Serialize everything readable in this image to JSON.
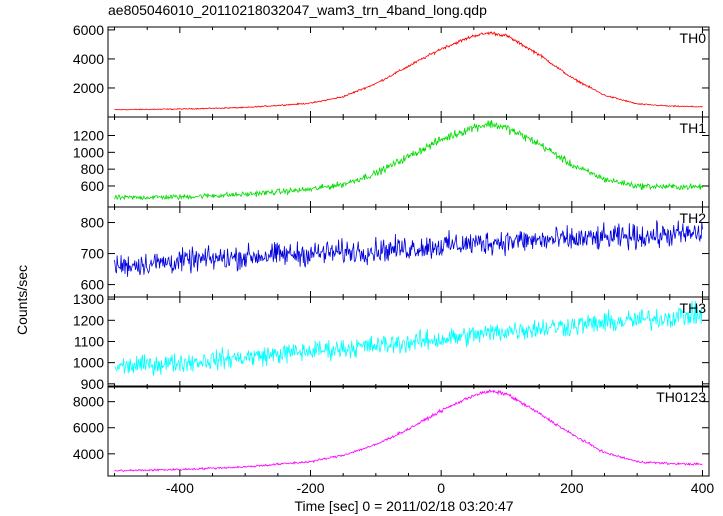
{
  "chart_data": {
    "type": "line",
    "title": "ae805046010_20110218032047_wam3_trn_4band_long.qdp",
    "xlabel": "Time [sec] 0 = 2011/02/18 03:20:47",
    "ylabel": "Counts/sec",
    "xlim": [
      -510,
      410
    ],
    "xticks": [
      -400,
      -200,
      0,
      200,
      400
    ],
    "panels": [
      {
        "name": "TH0",
        "color": "#ff0000",
        "ylim": [
          0,
          6200
        ],
        "yticks": [
          2000,
          4000,
          6000
        ],
        "points": [
          [
            -500,
            500
          ],
          [
            -400,
            550
          ],
          [
            -300,
            650
          ],
          [
            -200,
            950
          ],
          [
            -150,
            1400
          ],
          [
            -100,
            2300
          ],
          [
            -50,
            3500
          ],
          [
            0,
            4700
          ],
          [
            50,
            5600
          ],
          [
            75,
            5800
          ],
          [
            100,
            5600
          ],
          [
            150,
            4300
          ],
          [
            200,
            2700
          ],
          [
            250,
            1500
          ],
          [
            300,
            900
          ],
          [
            350,
            750
          ],
          [
            400,
            700
          ]
        ]
      },
      {
        "name": "TH1",
        "color": "#00dd00",
        "ylim": [
          350,
          1420
        ],
        "yticks": [
          600,
          800,
          1000,
          1200
        ],
        "points": [
          [
            -500,
            460
          ],
          [
            -400,
            470
          ],
          [
            -300,
            500
          ],
          [
            -200,
            560
          ],
          [
            -150,
            620
          ],
          [
            -100,
            750
          ],
          [
            -50,
            950
          ],
          [
            0,
            1150
          ],
          [
            50,
            1300
          ],
          [
            75,
            1340
          ],
          [
            100,
            1290
          ],
          [
            150,
            1100
          ],
          [
            200,
            850
          ],
          [
            250,
            680
          ],
          [
            300,
            600
          ],
          [
            350,
            590
          ],
          [
            400,
            590
          ]
        ]
      },
      {
        "name": "TH2",
        "color": "#0000dd",
        "ylim": [
          560,
          850
        ],
        "yticks": [
          600,
          700,
          800
        ],
        "points": [
          [
            -500,
            660
          ],
          [
            -400,
            675
          ],
          [
            -300,
            690
          ],
          [
            -200,
            700
          ],
          [
            -100,
            710
          ],
          [
            0,
            725
          ],
          [
            100,
            740
          ],
          [
            200,
            745
          ],
          [
            300,
            755
          ],
          [
            400,
            765
          ]
        ]
      },
      {
        "name": "TH3",
        "color": "#00ffff",
        "ylim": [
          885,
          1310
        ],
        "yticks": [
          900,
          1000,
          1100,
          1200,
          1300
        ],
        "points": [
          [
            -500,
            980
          ],
          [
            -400,
            1000
          ],
          [
            -300,
            1025
          ],
          [
            -200,
            1055
          ],
          [
            -100,
            1080
          ],
          [
            0,
            1110
          ],
          [
            100,
            1150
          ],
          [
            200,
            1175
          ],
          [
            300,
            1200
          ],
          [
            400,
            1230
          ]
        ]
      },
      {
        "name": "TH0123",
        "color": "#ff00ff",
        "ylim": [
          2300,
          9200
        ],
        "yticks": [
          4000,
          6000,
          8000
        ],
        "points": [
          [
            -500,
            2700
          ],
          [
            -400,
            2800
          ],
          [
            -300,
            3000
          ],
          [
            -200,
            3400
          ],
          [
            -150,
            3900
          ],
          [
            -100,
            4700
          ],
          [
            -50,
            5900
          ],
          [
            0,
            7300
          ],
          [
            50,
            8500
          ],
          [
            75,
            8800
          ],
          [
            100,
            8600
          ],
          [
            150,
            7100
          ],
          [
            200,
            5500
          ],
          [
            250,
            4100
          ],
          [
            300,
            3400
          ],
          [
            350,
            3250
          ],
          [
            400,
            3200
          ]
        ]
      }
    ]
  }
}
